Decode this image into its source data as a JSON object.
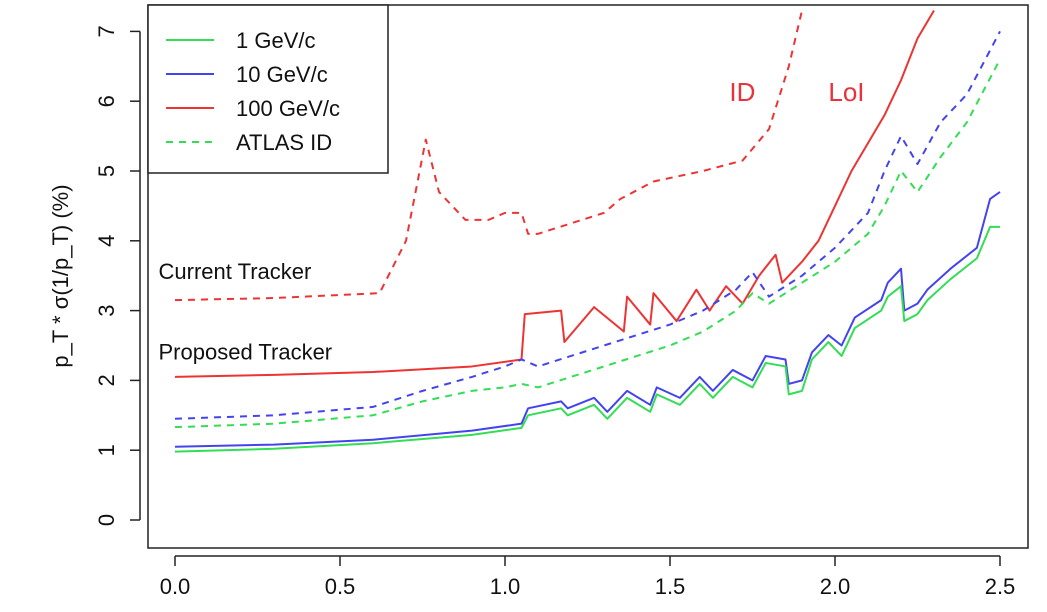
{
  "chart_data": {
    "type": "line",
    "title": "",
    "xlabel": "",
    "ylabel": "p_T * σ(1/p_T) (%)",
    "xlim": [
      0.0,
      2.5
    ],
    "ylim": [
      0,
      7
    ],
    "xticks": [
      "0.0",
      "0.5",
      "1.0",
      "1.5",
      "2.0",
      "2.5"
    ],
    "yticks": [
      "0",
      "1",
      "2",
      "3",
      "4",
      "5",
      "6",
      "7"
    ],
    "legend": {
      "position": "top-left",
      "entries": [
        {
          "label": "1  GeV/c",
          "color": "#33dd55",
          "dash": "solid"
        },
        {
          "label": "10  GeV/c",
          "color": "#4444ee",
          "dash": "solid"
        },
        {
          "label": "100  GeV/c",
          "color": "#ee3333",
          "dash": "solid"
        },
        {
          "label": "ATLAS ID",
          "color": "#33dd55",
          "dash": "dashed"
        }
      ]
    },
    "annotations": [
      {
        "text": "Current Tracker",
        "x": -0.05,
        "y": 3.45,
        "style": "black"
      },
      {
        "text": "Proposed Tracker",
        "x": -0.05,
        "y": 2.3,
        "style": "black"
      },
      {
        "text": "ID",
        "x": 1.68,
        "y": 6.0,
        "style": "red"
      },
      {
        "text": "LoI",
        "x": 1.98,
        "y": 6.0,
        "style": "red"
      }
    ],
    "series": [
      {
        "name": "100 GeV/c (LoI)",
        "color": "#ee3333",
        "dash": "solid",
        "x": [
          0.0,
          0.3,
          0.6,
          0.9,
          1.05,
          1.06,
          1.17,
          1.18,
          1.27,
          1.36,
          1.37,
          1.44,
          1.45,
          1.52,
          1.58,
          1.62,
          1.67,
          1.72,
          1.77,
          1.82,
          1.84,
          1.87,
          1.9,
          1.95,
          2.0,
          2.05,
          2.1,
          2.15,
          2.2,
          2.25,
          2.3
        ],
        "y": [
          2.05,
          2.08,
          2.12,
          2.2,
          2.3,
          2.95,
          3.0,
          2.55,
          3.05,
          2.7,
          3.2,
          2.8,
          3.25,
          2.85,
          3.3,
          3.0,
          3.35,
          3.1,
          3.5,
          3.8,
          3.4,
          3.55,
          3.7,
          4.0,
          4.5,
          5.0,
          5.4,
          5.8,
          6.3,
          6.9,
          7.3
        ]
      },
      {
        "name": "100 GeV/c (ID)",
        "color": "#ee3333",
        "dash": "dashed",
        "x": [
          0.0,
          0.3,
          0.62,
          0.7,
          0.76,
          0.8,
          0.88,
          0.95,
          1.0,
          1.05,
          1.07,
          1.1,
          1.2,
          1.3,
          1.35,
          1.45,
          1.55,
          1.6,
          1.72,
          1.8,
          1.86,
          1.9
        ],
        "y": [
          3.15,
          3.18,
          3.25,
          4.0,
          5.45,
          4.7,
          4.3,
          4.3,
          4.4,
          4.4,
          4.1,
          4.1,
          4.25,
          4.4,
          4.6,
          4.85,
          4.95,
          5.0,
          5.15,
          5.6,
          6.5,
          7.3
        ]
      },
      {
        "name": "10 GeV/c (LoI)",
        "color": "#4444ee",
        "dash": "solid",
        "x": [
          0.0,
          0.3,
          0.6,
          0.9,
          1.05,
          1.07,
          1.17,
          1.19,
          1.27,
          1.31,
          1.37,
          1.44,
          1.46,
          1.53,
          1.59,
          1.63,
          1.69,
          1.75,
          1.79,
          1.85,
          1.86,
          1.9,
          1.93,
          1.98,
          2.02,
          2.06,
          2.14,
          2.16,
          2.2,
          2.21,
          2.25,
          2.28,
          2.35,
          2.43,
          2.47,
          2.5
        ],
        "y": [
          1.05,
          1.08,
          1.15,
          1.28,
          1.38,
          1.6,
          1.7,
          1.6,
          1.75,
          1.55,
          1.85,
          1.65,
          1.9,
          1.75,
          2.05,
          1.85,
          2.15,
          2.0,
          2.35,
          2.3,
          1.95,
          2.0,
          2.4,
          2.65,
          2.5,
          2.9,
          3.15,
          3.4,
          3.6,
          3.0,
          3.1,
          3.3,
          3.6,
          3.9,
          4.6,
          4.7
        ]
      },
      {
        "name": "10 GeV/c (ID)",
        "color": "#4444ee",
        "dash": "dashed",
        "x": [
          0.0,
          0.3,
          0.6,
          0.75,
          0.9,
          1.0,
          1.05,
          1.1,
          1.2,
          1.3,
          1.4,
          1.5,
          1.6,
          1.7,
          1.75,
          1.8,
          1.9,
          2.0,
          2.1,
          2.15,
          2.2,
          2.25,
          2.32,
          2.4,
          2.5
        ],
        "y": [
          1.45,
          1.5,
          1.62,
          1.85,
          2.05,
          2.2,
          2.3,
          2.2,
          2.35,
          2.5,
          2.65,
          2.8,
          3.0,
          3.3,
          3.55,
          3.2,
          3.5,
          3.9,
          4.4,
          5.0,
          5.5,
          5.1,
          5.7,
          6.1,
          7.0
        ]
      },
      {
        "name": "1 GeV/c (LoI)",
        "color": "#33dd55",
        "dash": "solid",
        "x": [
          0.0,
          0.3,
          0.6,
          0.9,
          1.05,
          1.07,
          1.17,
          1.19,
          1.27,
          1.31,
          1.37,
          1.44,
          1.46,
          1.53,
          1.59,
          1.63,
          1.69,
          1.75,
          1.79,
          1.85,
          1.86,
          1.9,
          1.93,
          1.98,
          2.02,
          2.06,
          2.14,
          2.16,
          2.2,
          2.21,
          2.25,
          2.28,
          2.35,
          2.43,
          2.47,
          2.5
        ],
        "y": [
          0.98,
          1.02,
          1.1,
          1.22,
          1.32,
          1.5,
          1.6,
          1.5,
          1.65,
          1.45,
          1.75,
          1.55,
          1.8,
          1.65,
          1.95,
          1.75,
          2.05,
          1.9,
          2.25,
          2.2,
          1.8,
          1.85,
          2.3,
          2.55,
          2.35,
          2.75,
          3.0,
          3.2,
          3.35,
          2.85,
          2.95,
          3.15,
          3.45,
          3.75,
          4.2,
          4.2
        ]
      },
      {
        "name": "ATLAS ID (1 GeV/c)",
        "color": "#33dd55",
        "dash": "dashed",
        "x": [
          0.0,
          0.3,
          0.6,
          0.75,
          0.9,
          1.0,
          1.05,
          1.1,
          1.2,
          1.3,
          1.4,
          1.5,
          1.6,
          1.7,
          1.75,
          1.8,
          1.9,
          2.0,
          2.1,
          2.15,
          2.2,
          2.25,
          2.32,
          2.4,
          2.5
        ],
        "y": [
          1.33,
          1.38,
          1.5,
          1.7,
          1.85,
          1.9,
          1.95,
          1.9,
          2.05,
          2.2,
          2.35,
          2.5,
          2.7,
          3.0,
          3.25,
          3.1,
          3.4,
          3.7,
          4.1,
          4.5,
          5.0,
          4.7,
          5.2,
          5.7,
          6.6
        ]
      }
    ]
  }
}
